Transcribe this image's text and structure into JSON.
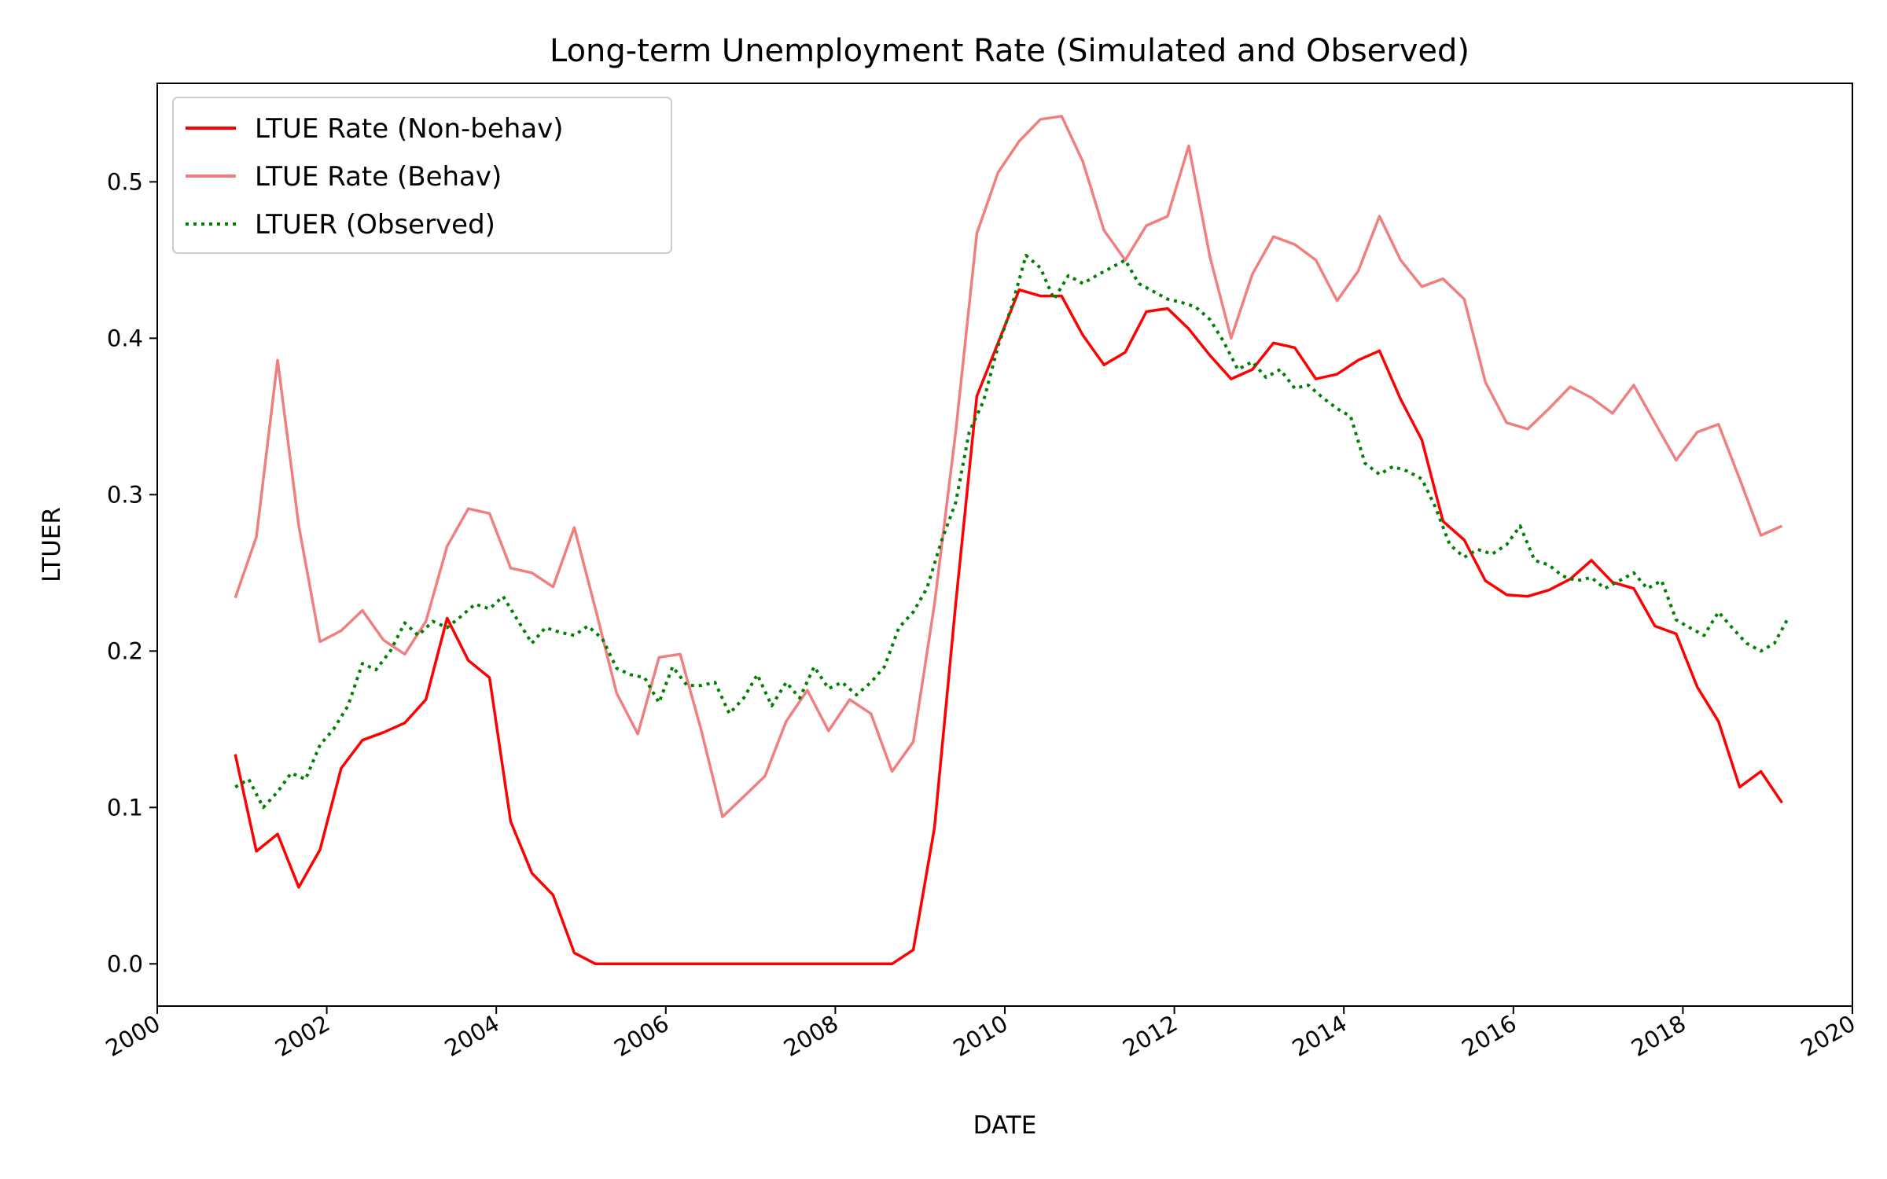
{
  "chart_data": {
    "type": "line",
    "title": "Long-term Unemployment Rate (Simulated and Observed)",
    "xlabel": "DATE",
    "ylabel": "LTUER",
    "xlim": [
      2000,
      2020
    ],
    "ylim": [
      -0.027,
      0.563
    ],
    "x_ticks": [
      "2000",
      "2002",
      "2004",
      "2006",
      "2008",
      "2010",
      "2012",
      "2014",
      "2016",
      "2018",
      "2020"
    ],
    "y_ticks": [
      "0.0",
      "0.1",
      "0.2",
      "0.3",
      "0.4",
      "0.5"
    ],
    "y_tick_values": [
      0.0,
      0.1,
      0.2,
      0.3,
      0.4,
      0.5
    ],
    "grid": false,
    "legend_position": "top-left",
    "series": [
      {
        "name": "LTUE Rate (Non-behav)",
        "color": "#ff0000",
        "style": "solid",
        "x": [
          2000.92,
          2001.17,
          2001.42,
          2001.67,
          2001.92,
          2002.17,
          2002.42,
          2002.67,
          2002.92,
          2003.17,
          2003.42,
          2003.67,
          2003.92,
          2004.17,
          2004.42,
          2004.67,
          2004.92,
          2005.17,
          2005.42,
          2005.67,
          2005.92,
          2006.17,
          2006.42,
          2006.67,
          2006.92,
          2007.17,
          2007.42,
          2007.67,
          2007.92,
          2008.17,
          2008.42,
          2008.67,
          2008.92,
          2009.17,
          2009.42,
          2009.67,
          2009.92,
          2010.17,
          2010.42,
          2010.67,
          2010.92,
          2011.17,
          2011.42,
          2011.67,
          2011.92,
          2012.17,
          2012.42,
          2012.67,
          2012.92,
          2013.17,
          2013.42,
          2013.67,
          2013.92,
          2014.17,
          2014.42,
          2014.67,
          2014.92,
          2015.17,
          2015.42,
          2015.67,
          2015.92,
          2016.17,
          2016.42,
          2016.67,
          2016.92,
          2017.17,
          2017.42,
          2017.67,
          2017.92,
          2018.17,
          2018.42,
          2018.67,
          2018.92,
          2019.17
        ],
        "y": [
          0.134,
          0.072,
          0.083,
          0.049,
          0.073,
          0.125,
          0.143,
          0.148,
          0.154,
          0.169,
          0.221,
          0.194,
          0.183,
          0.091,
          0.058,
          0.044,
          0.007,
          0.0,
          0.0,
          0.0,
          0.0,
          0.0,
          0.0,
          0.0,
          0.0,
          0.0,
          0.0,
          0.0,
          0.0,
          0.0,
          0.0,
          0.0,
          0.009,
          0.087,
          0.23,
          0.363,
          0.397,
          0.431,
          0.427,
          0.427,
          0.402,
          0.383,
          0.391,
          0.417,
          0.419,
          0.406,
          0.389,
          0.374,
          0.38,
          0.397,
          0.394,
          0.374,
          0.377,
          0.386,
          0.392,
          0.361,
          0.335,
          0.283,
          0.271,
          0.245,
          0.236,
          0.235,
          0.239,
          0.246,
          0.258,
          0.244,
          0.24,
          0.216,
          0.211,
          0.177,
          0.155,
          0.113,
          0.123,
          0.103
        ]
      },
      {
        "name": "LTUE Rate (Behav)",
        "color": "#f08080",
        "style": "solid",
        "x": [
          2000.92,
          2001.17,
          2001.42,
          2001.67,
          2001.92,
          2002.17,
          2002.42,
          2002.67,
          2002.92,
          2003.17,
          2003.42,
          2003.67,
          2003.92,
          2004.17,
          2004.42,
          2004.67,
          2004.92,
          2005.17,
          2005.42,
          2005.67,
          2005.92,
          2006.17,
          2006.42,
          2006.67,
          2006.92,
          2007.17,
          2007.42,
          2007.67,
          2007.92,
          2008.17,
          2008.42,
          2008.67,
          2008.92,
          2009.17,
          2009.42,
          2009.67,
          2009.92,
          2010.17,
          2010.42,
          2010.67,
          2010.92,
          2011.17,
          2011.42,
          2011.67,
          2011.92,
          2012.17,
          2012.42,
          2012.67,
          2012.92,
          2013.17,
          2013.42,
          2013.67,
          2013.92,
          2014.17,
          2014.42,
          2014.67,
          2014.92,
          2015.17,
          2015.42,
          2015.67,
          2015.92,
          2016.17,
          2016.42,
          2016.67,
          2016.92,
          2017.17,
          2017.42,
          2017.67,
          2017.92,
          2018.17,
          2018.42,
          2018.67,
          2018.92,
          2019.17
        ],
        "y": [
          0.234,
          0.273,
          0.386,
          0.28,
          0.206,
          0.213,
          0.226,
          0.207,
          0.198,
          0.219,
          0.267,
          0.291,
          0.288,
          0.253,
          0.25,
          0.241,
          0.279,
          0.227,
          0.173,
          0.147,
          0.196,
          0.198,
          0.149,
          0.094,
          0.107,
          0.12,
          0.155,
          0.175,
          0.149,
          0.169,
          0.16,
          0.123,
          0.142,
          0.23,
          0.34,
          0.467,
          0.506,
          0.526,
          0.54,
          0.542,
          0.513,
          0.469,
          0.45,
          0.472,
          0.478,
          0.523,
          0.452,
          0.4,
          0.441,
          0.465,
          0.46,
          0.45,
          0.424,
          0.443,
          0.478,
          0.45,
          0.433,
          0.438,
          0.425,
          0.372,
          0.346,
          0.342,
          0.355,
          0.369,
          0.362,
          0.352,
          0.37,
          0.346,
          0.322,
          0.34,
          0.345,
          0.31,
          0.274,
          0.28
        ]
      },
      {
        "name": "LTUER (Observed)",
        "color": "#008000",
        "style": "dotted",
        "x": [
          2000.92,
          2001.08,
          2001.25,
          2001.42,
          2001.58,
          2001.75,
          2001.92,
          2002.08,
          2002.25,
          2002.42,
          2002.58,
          2002.75,
          2002.92,
          2003.08,
          2003.25,
          2003.42,
          2003.58,
          2003.75,
          2003.92,
          2004.08,
          2004.25,
          2004.42,
          2004.58,
          2004.75,
          2004.92,
          2005.08,
          2005.25,
          2005.42,
          2005.58,
          2005.75,
          2005.92,
          2006.08,
          2006.25,
          2006.42,
          2006.58,
          2006.75,
          2006.92,
          2007.08,
          2007.25,
          2007.42,
          2007.58,
          2007.75,
          2007.92,
          2008.08,
          2008.25,
          2008.42,
          2008.58,
          2008.75,
          2008.92,
          2009.08,
          2009.25,
          2009.42,
          2009.58,
          2009.75,
          2009.92,
          2010.08,
          2010.25,
          2010.42,
          2010.58,
          2010.75,
          2010.92,
          2011.08,
          2011.25,
          2011.42,
          2011.58,
          2011.75,
          2011.92,
          2012.08,
          2012.25,
          2012.42,
          2012.58,
          2012.75,
          2012.92,
          2013.08,
          2013.25,
          2013.42,
          2013.58,
          2013.75,
          2013.92,
          2014.08,
          2014.25,
          2014.42,
          2014.58,
          2014.75,
          2014.92,
          2015.08,
          2015.25,
          2015.42,
          2015.58,
          2015.75,
          2015.92,
          2016.08,
          2016.25,
          2016.42,
          2016.58,
          2016.75,
          2016.92,
          2017.08,
          2017.25,
          2017.42,
          2017.58,
          2017.75,
          2017.92,
          2018.08,
          2018.25,
          2018.42,
          2018.58,
          2018.75,
          2018.92,
          2019.08,
          2019.25
        ],
        "y": [
          0.113,
          0.118,
          0.1,
          0.11,
          0.122,
          0.118,
          0.14,
          0.15,
          0.165,
          0.192,
          0.188,
          0.2,
          0.218,
          0.21,
          0.219,
          0.215,
          0.222,
          0.23,
          0.227,
          0.235,
          0.22,
          0.205,
          0.215,
          0.212,
          0.21,
          0.216,
          0.208,
          0.189,
          0.185,
          0.183,
          0.167,
          0.19,
          0.178,
          0.178,
          0.18,
          0.16,
          0.17,
          0.185,
          0.165,
          0.18,
          0.17,
          0.19,
          0.176,
          0.18,
          0.172,
          0.18,
          0.19,
          0.215,
          0.225,
          0.24,
          0.27,
          0.295,
          0.34,
          0.36,
          0.395,
          0.42,
          0.453,
          0.445,
          0.425,
          0.44,
          0.435,
          0.44,
          0.445,
          0.45,
          0.435,
          0.43,
          0.425,
          0.423,
          0.42,
          0.412,
          0.398,
          0.38,
          0.385,
          0.375,
          0.38,
          0.368,
          0.37,
          0.362,
          0.355,
          0.35,
          0.32,
          0.313,
          0.318,
          0.315,
          0.31,
          0.292,
          0.268,
          0.26,
          0.265,
          0.262,
          0.268,
          0.28,
          0.258,
          0.255,
          0.248,
          0.245,
          0.247,
          0.24,
          0.245,
          0.25,
          0.24,
          0.245,
          0.22,
          0.215,
          0.21,
          0.225,
          0.215,
          0.205,
          0.2,
          0.205,
          0.222
        ]
      }
    ]
  }
}
